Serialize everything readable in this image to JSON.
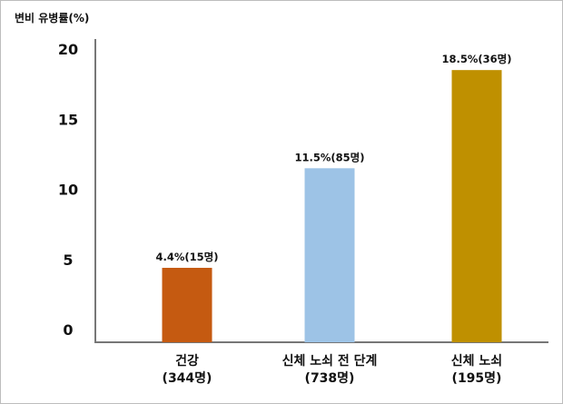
{
  "chart_data": {
    "type": "bar",
    "ylabel": "변비 유병률(%)",
    "xlabel": "",
    "ylim": [
      0,
      20
    ],
    "yticks": [
      0,
      5,
      10,
      15,
      20
    ],
    "grid": false,
    "categories": [
      {
        "line1": "건강",
        "line2": "(344명)"
      },
      {
        "line1": "신체 노쇠 전 단계",
        "line2": "(738명)"
      },
      {
        "line1": "신체 노쇠",
        "line2": "(195명)"
      }
    ],
    "values": [
      4.4,
      11.5,
      18.5
    ],
    "value_labels": [
      "4.4%(15명)",
      "11.5%(85명)",
      "18.5%(36명)"
    ],
    "colors": [
      "#C55A11",
      "#9DC3E6",
      "#BF9000"
    ]
  }
}
